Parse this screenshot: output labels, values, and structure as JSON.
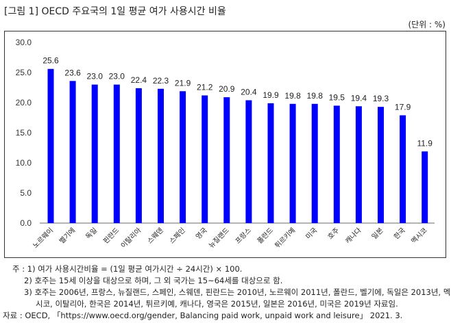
{
  "header": {
    "title": "[그림 1] OECD 주요국의 1일 평균 여가 사용시간 비율",
    "unit": "(단위 : %)"
  },
  "chart_data": {
    "type": "bar",
    "title": "OECD 주요국의 1일 평균 여가 사용시간 비율",
    "xlabel": "",
    "ylabel": "",
    "unit": "%",
    "ylim": [
      0,
      30
    ],
    "yticks": [
      "0.0",
      "5.0",
      "10.0",
      "15.0",
      "20.0",
      "25.0",
      "30.0"
    ],
    "grid": false,
    "legend": null,
    "bar_color": "#0000FF",
    "categories": [
      "노르웨이",
      "벨기에",
      "독일",
      "핀란드",
      "이탈리아",
      "스웨덴",
      "스페인",
      "영국",
      "뉴질랜드",
      "프랑스",
      "폴란드",
      "튀르키예",
      "미국",
      "호주",
      "캐나다",
      "일본",
      "한국",
      "멕시코"
    ],
    "values": [
      25.6,
      23.6,
      23.0,
      23.0,
      22.4,
      22.3,
      21.9,
      21.2,
      20.9,
      20.4,
      19.9,
      19.8,
      19.8,
      19.5,
      19.4,
      19.3,
      17.9,
      11.9
    ],
    "value_labels": [
      "25.6",
      "23.6",
      "23.0",
      "23.0",
      "22.4",
      "22.3",
      "21.9",
      "21.2",
      "20.9",
      "20.4",
      "19.9",
      "19.8",
      "19.8",
      "19.5",
      "19.4",
      "19.3",
      "17.9",
      "11.9"
    ]
  },
  "notes": {
    "note_prefix": "주 : ",
    "note1": "1) 여가 사용시간비율 = (1일 평균 여가시간 ÷ 24시간) × 100.",
    "note2": "2) 호주는 15세 이상을 대상으로 하며, 그 외 국가는 15~64세를 대상으로 함.",
    "note3a": "3) 호주는 2006년, 프랑스, 뉴질랜드, 스페인, 스웨덴, 핀란드는 2010년, 노르웨이 2011년, 폴란드, 벨기에, 독일은 2013년, 멕",
    "note3b": "시코, 이탈리아, 한국은 2014년, 튀르키예, 캐나다, 영국은 2015년, 일본은 2016년, 미국은 2019년 자료임.",
    "source": "자료 : OECD, 「https://www.oecd.org/gender, Balancing paid work, unpaid work and leisure」 2021. 3."
  }
}
